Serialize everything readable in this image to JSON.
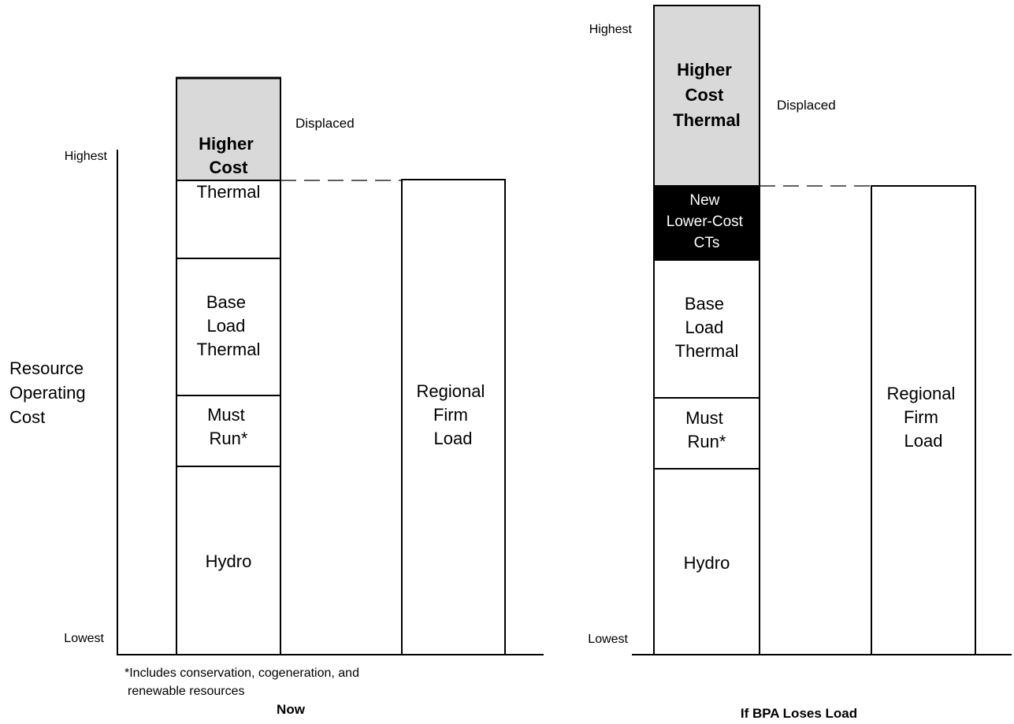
{
  "colors": {
    "line": "#000000",
    "displaced_fill": "#d9d9d9",
    "new_ct_fill": "#000000",
    "new_ct_text": "#ffffff",
    "box_fill": "#ffffff"
  },
  "left_panel": {
    "axis_label_lines": [
      "Resource",
      "Operating",
      "Cost"
    ],
    "highest_label": "Highest",
    "lowest_label": "Lowest",
    "displaced_label": "Displaced",
    "higher_cost_lines": [
      "Higher",
      "Cost"
    ],
    "thermal_label": "Thermal",
    "base_load_lines": [
      "Base",
      "Load",
      "Thermal"
    ],
    "must_run_lines": [
      "Must",
      "Run*"
    ],
    "hydro_label": "Hydro",
    "firm_load_lines": [
      "Regional",
      "Firm",
      "Load"
    ],
    "footnote_lines": [
      "*Includes conservation, cogeneration, and",
      "renewable resources"
    ],
    "caption": "Now"
  },
  "right_panel": {
    "highest_label": "Highest",
    "lowest_label": "Lowest",
    "displaced_label": "Displaced",
    "higher_cost_lines": [
      "Higher",
      "Cost",
      "Thermal"
    ],
    "new_ct_lines": [
      "New",
      "Lower-Cost",
      "CTs"
    ],
    "base_load_lines": [
      "Base",
      "Load",
      "Thermal"
    ],
    "must_run_lines": [
      "Must",
      "Run*"
    ],
    "hydro_label": "Hydro",
    "firm_load_lines": [
      "Regional",
      "Firm",
      "Load"
    ],
    "caption": "If BPA Loses Load"
  }
}
